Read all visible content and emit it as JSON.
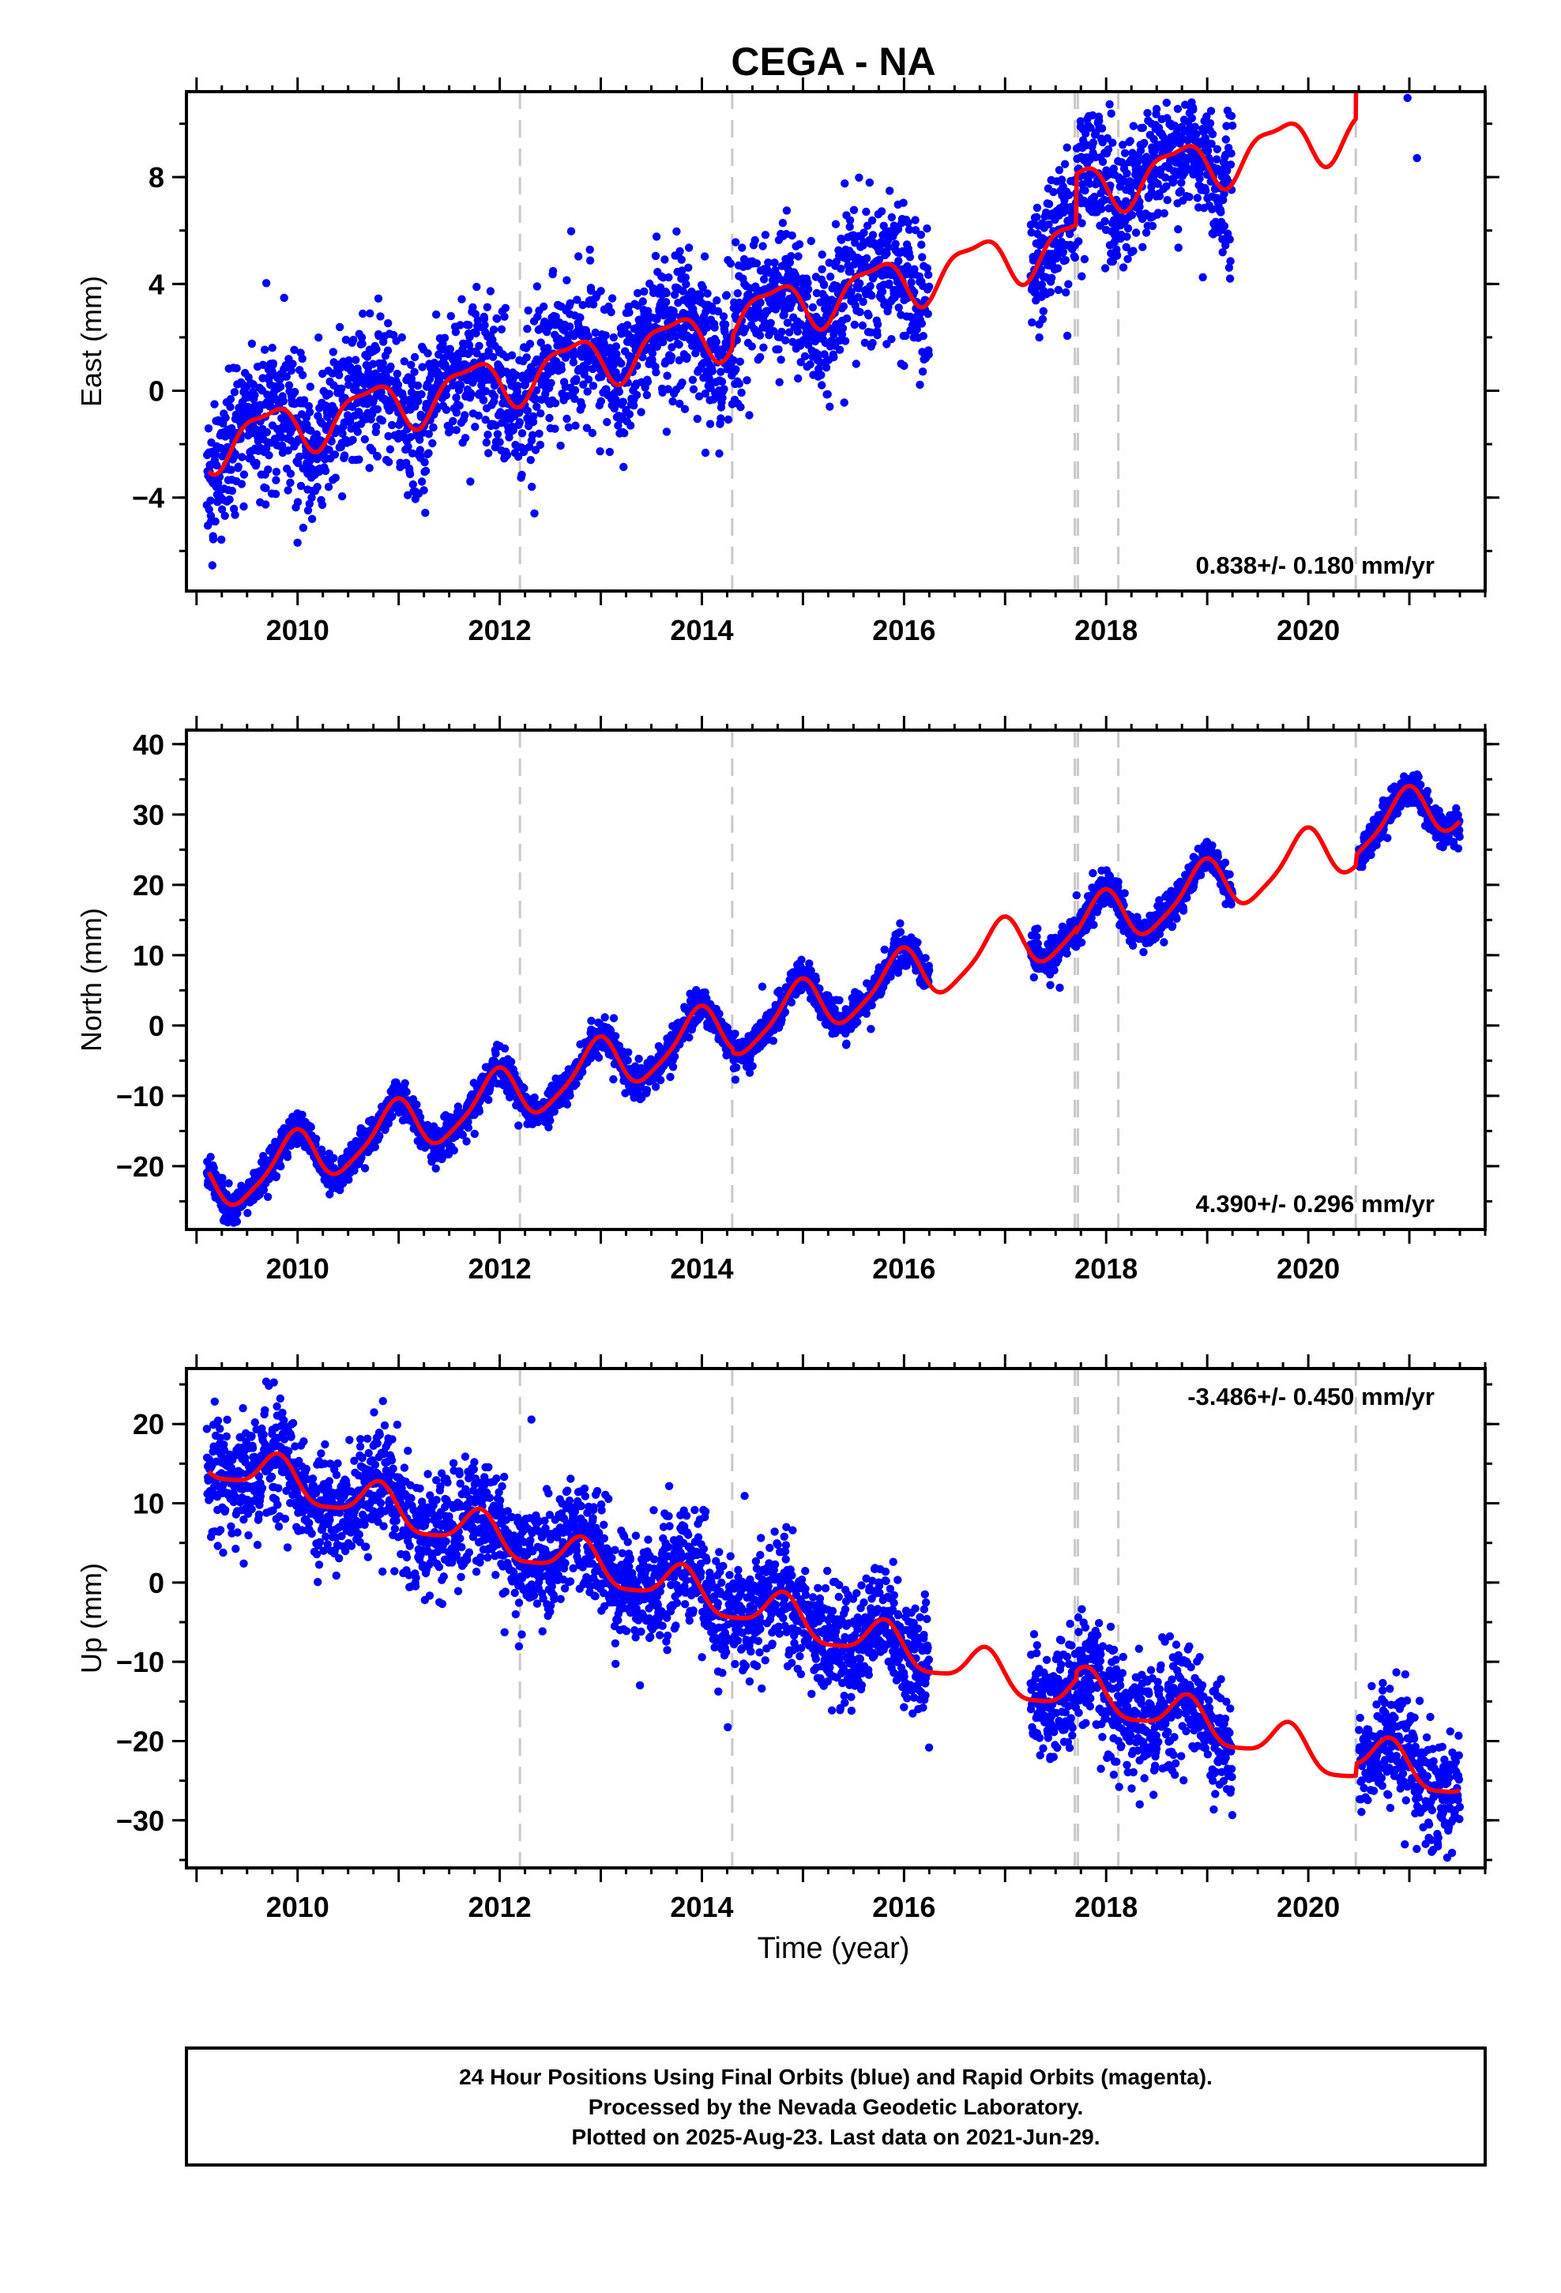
{
  "title": "CEGA - NA",
  "xlabel": "Time (year)",
  "footer": {
    "line1": "24 Hour Positions Using Final Orbits (blue) and Rapid Orbits (magenta).",
    "line2": "Processed by the Nevada Geodetic Laboratory.",
    "line3": "Plotted on 2025-Aug-23. Last data on 2021-Jun-29."
  },
  "colors": {
    "points": "#0000ff",
    "fit": "#ff0000",
    "breaks": "#c8c8c8",
    "frame": "#000000"
  },
  "chart_data": [
    {
      "type": "scatter",
      "name": "east",
      "ylabel": "East (mm)",
      "rate_text": "0.838+/- 0.180 mm/yr",
      "rate_position": "bottom-right",
      "xlim": [
        2008.9,
        2021.75
      ],
      "ylim": [
        -7.5,
        11.2
      ],
      "xticks": [
        2010,
        2012,
        2014,
        2016,
        2018,
        2020
      ],
      "yticks": [
        -4,
        0,
        4,
        8
      ],
      "breaks": [
        2012.2,
        2014.3,
        2017.69,
        2017.72,
        2018.12,
        2020.47
      ],
      "rate": 0.838,
      "fit_offsets": [
        [
          2008.9,
          -2.1
        ],
        [
          2012.2,
          -2.1
        ],
        [
          2014.3,
          -1.7
        ],
        [
          2017.7,
          0.2
        ],
        [
          2020.47,
          4.6
        ]
      ],
      "fit_seasonal": {
        "annual_amp": 0.9,
        "annual_phase": 0.55,
        "semi_amp": 0.3,
        "semi_phase": 0.2
      },
      "data_segments": [
        [
          2009.1,
          2016.25
        ],
        [
          2017.25,
          2019.25
        ],
        [
          2020.5,
          2021.5
        ]
      ],
      "scatter_sd": 1.3,
      "outlier_amp": 2.8
    },
    {
      "type": "scatter",
      "name": "north",
      "ylabel": "North (mm)",
      "rate_text": "4.390+/- 0.296 mm/yr",
      "rate_position": "bottom-right",
      "xlim": [
        2008.9,
        2021.75
      ],
      "ylim": [
        -29,
        42
      ],
      "xticks": [
        2010,
        2012,
        2014,
        2016,
        2018,
        2020
      ],
      "yticks": [
        -20,
        -10,
        0,
        10,
        20,
        30,
        40
      ],
      "breaks": [
        2012.2,
        2014.3,
        2017.69,
        2017.72,
        2018.12,
        2020.47
      ],
      "rate": 4.39,
      "fit_offsets": [
        [
          2008.9,
          -23.5
        ],
        [
          2012.2,
          -23.5
        ],
        [
          2014.3,
          -24.0
        ],
        [
          2017.7,
          -24.5
        ],
        [
          2020.47,
          -23.0
        ]
      ],
      "fit_seasonal": {
        "annual_amp": 3.8,
        "annual_phase": 0.3,
        "semi_amp": 0.8,
        "semi_phase": 0.1
      },
      "data_segments": [
        [
          2009.1,
          2016.25
        ],
        [
          2017.25,
          2019.25
        ],
        [
          2020.5,
          2021.5
        ]
      ],
      "scatter_sd": 1.2,
      "outlier_amp": 3.5
    },
    {
      "type": "scatter",
      "name": "up",
      "ylabel": "Up (mm)",
      "rate_text": "-3.486+/- 0.450 mm/yr",
      "rate_position": "top-right",
      "xlim": [
        2008.9,
        2021.75
      ],
      "ylim": [
        -36,
        27
      ],
      "xticks": [
        2010,
        2012,
        2014,
        2016,
        2018,
        2020
      ],
      "yticks": [
        -30,
        -20,
        -10,
        0,
        10,
        20
      ],
      "breaks": [
        2012.2,
        2014.3,
        2017.69,
        2017.72,
        2018.12,
        2020.47
      ],
      "rate": -3.486,
      "fit_offsets": [
        [
          2008.9,
          16.0
        ],
        [
          2012.2,
          16.0
        ],
        [
          2014.3,
          16.0
        ],
        [
          2017.7,
          17.0
        ],
        [
          2020.47,
          18.5
        ]
      ],
      "fit_seasonal": {
        "annual_amp": 2.5,
        "annual_phase": 0.45,
        "semi_amp": 0.6,
        "semi_phase": 0.3
      },
      "data_segments": [
        [
          2009.1,
          2016.25
        ],
        [
          2017.25,
          2019.25
        ],
        [
          2020.5,
          2021.5
        ]
      ],
      "scatter_sd": 3.6,
      "outlier_amp": 7.0
    }
  ]
}
